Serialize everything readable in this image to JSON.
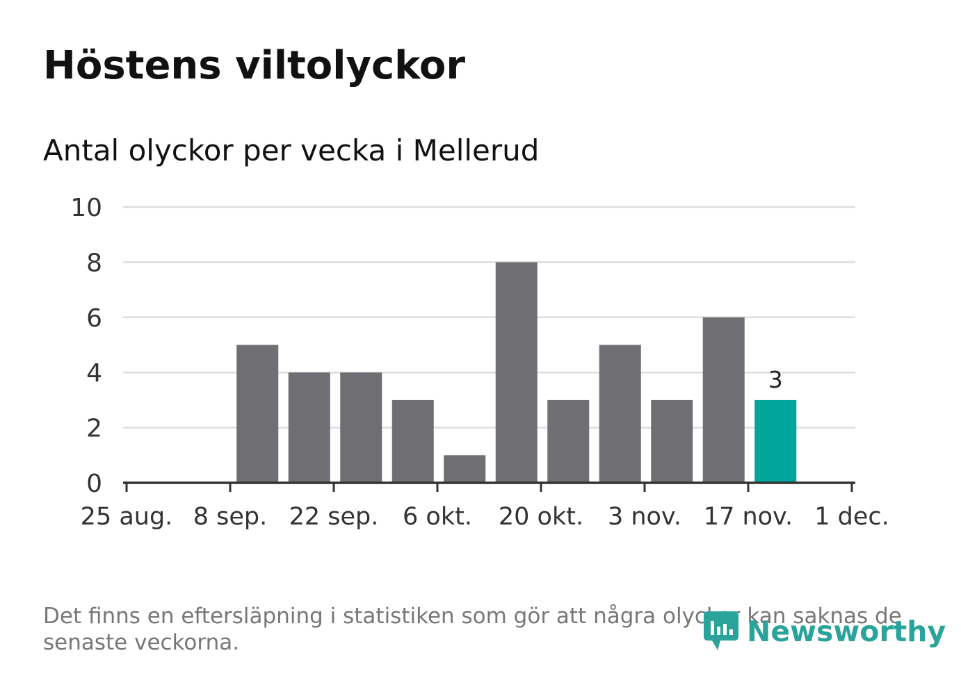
{
  "title": "Höstens viltolyckor",
  "subtitle": "Antal olyckor per vecka i Mellerud",
  "footnote": "Det finns en eftersläpning i statistiken som gör att några olyckor kan saknas de senaste veckorna.",
  "logo_text": "Newsworthy",
  "colors": {
    "bar": "#6f6e73",
    "highlight": "#00a59b",
    "grid": "#dddddd",
    "axis": "#333333",
    "logo": "#2aa39a"
  },
  "chart_data": {
    "type": "bar",
    "y_ticks": [
      "0",
      "2",
      "4",
      "6",
      "8",
      "10"
    ],
    "ylim": [
      0,
      10
    ],
    "x_tick_labels": [
      "25 aug.",
      "8 sep.",
      "22 sep.",
      "6 okt.",
      "20 okt.",
      "3 nov.",
      "17 nov.",
      "1 dec."
    ],
    "weeks": [
      "2019-08-26",
      "2019-09-02",
      "2019-09-09",
      "2019-09-16",
      "2019-09-23",
      "2019-09-30",
      "2019-10-07",
      "2019-10-14",
      "2019-10-21",
      "2019-10-28",
      "2019-11-04",
      "2019-11-11",
      "2019-11-18"
    ],
    "values": [
      0,
      0,
      5,
      4,
      4,
      3,
      1,
      8,
      3,
      5,
      3,
      6,
      3
    ],
    "highlight_last": true,
    "last_value_label": "3",
    "grid": true,
    "legend": "none"
  }
}
